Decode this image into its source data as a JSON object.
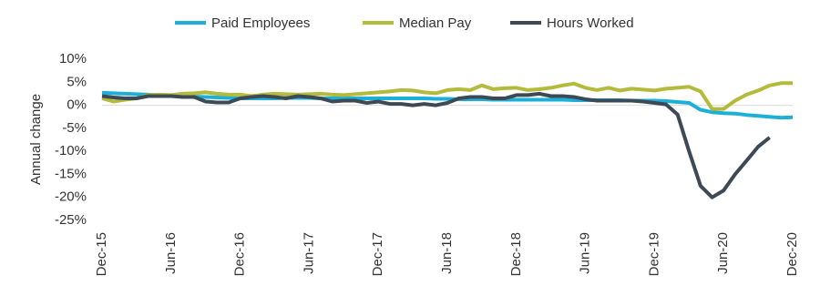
{
  "chart_data": {
    "type": "line",
    "y_label": "Annual change",
    "categories": [
      "Dec-15",
      null,
      null,
      null,
      null,
      null,
      "Jun-16",
      null,
      null,
      null,
      null,
      null,
      "Dec-16",
      null,
      null,
      null,
      null,
      null,
      "Jun-17",
      null,
      null,
      null,
      null,
      null,
      "Dec-17",
      null,
      null,
      null,
      null,
      null,
      "Jun-18",
      null,
      null,
      null,
      null,
      null,
      "Dec-18",
      null,
      null,
      null,
      null,
      null,
      "Jun-19",
      null,
      null,
      null,
      null,
      null,
      "Dec-19",
      null,
      null,
      null,
      null,
      null,
      "Jun-20",
      null,
      null,
      null,
      null,
      null,
      "Dec-20"
    ],
    "series": [
      {
        "name": "Paid Employees",
        "color": "#1cb0d8",
        "values": [
          2.7,
          2.6,
          2.5,
          2.4,
          2.3,
          2.2,
          2.1,
          2.0,
          1.9,
          1.8,
          1.7,
          1.6,
          1.5,
          1.5,
          1.5,
          1.5,
          1.6,
          1.6,
          1.6,
          1.5,
          1.5,
          1.5,
          1.5,
          1.5,
          1.5,
          1.5,
          1.5,
          1.5,
          1.5,
          1.4,
          1.4,
          1.3,
          1.3,
          1.3,
          1.2,
          1.2,
          1.2,
          1.2,
          1.2,
          1.2,
          1.2,
          1.1,
          1.1,
          1.1,
          1.1,
          1.1,
          1.0,
          1.0,
          1.0,
          0.9,
          0.7,
          0.5,
          -1.0,
          -1.5,
          -1.7,
          -1.8,
          -2.1,
          -2.3,
          -2.5,
          -2.7,
          -2.6
        ]
      },
      {
        "name": "Median Pay",
        "color": "#b3ba3c",
        "values": [
          1.5,
          0.8,
          1.2,
          1.5,
          2.2,
          2.3,
          2.2,
          2.5,
          2.6,
          2.8,
          2.5,
          2.3,
          2.3,
          2.0,
          2.3,
          2.5,
          2.4,
          2.3,
          2.4,
          2.5,
          2.3,
          2.2,
          2.4,
          2.6,
          2.8,
          3.0,
          3.3,
          3.2,
          2.8,
          2.6,
          3.3,
          3.5,
          3.3,
          4.3,
          3.5,
          3.7,
          3.8,
          3.3,
          3.5,
          3.8,
          4.3,
          4.7,
          3.8,
          3.3,
          3.8,
          3.2,
          3.6,
          3.4,
          3.2,
          3.6,
          3.8,
          4.0,
          3.0,
          -0.8,
          -0.8,
          1.0,
          2.3,
          3.2,
          4.3,
          4.8,
          4.8
        ]
      },
      {
        "name": "Hours Worked",
        "color": "#3d4a56",
        "values": [
          2.0,
          1.7,
          1.5,
          1.5,
          2.0,
          2.0,
          2.0,
          1.8,
          1.8,
          0.8,
          0.6,
          0.6,
          1.5,
          1.8,
          2.0,
          1.8,
          1.5,
          2.0,
          1.8,
          1.5,
          0.8,
          1.0,
          1.0,
          0.5,
          0.8,
          0.3,
          0.3,
          0.0,
          0.3,
          0.0,
          0.5,
          1.5,
          1.8,
          1.8,
          1.5,
          1.5,
          2.2,
          2.2,
          2.5,
          2.0,
          2.0,
          1.8,
          1.3,
          1.0,
          1.0,
          1.0,
          1.0,
          0.8,
          0.5,
          0.2,
          -2.0,
          -10.0,
          -17.5,
          -20.0,
          -18.5,
          -15.0,
          -12.0,
          -9.0,
          -7.0,
          null,
          null
        ]
      }
    ],
    "ylim": [
      -25,
      10
    ],
    "yticks": [
      {
        "value": 10,
        "label": "10%"
      },
      {
        "value": 5,
        "label": "5%"
      },
      {
        "value": 0,
        "label": "0%"
      },
      {
        "value": -5,
        "label": "-5%"
      },
      {
        "value": -10,
        "label": "-10%"
      },
      {
        "value": -15,
        "label": "-15%"
      },
      {
        "value": -20,
        "label": "-20%"
      },
      {
        "value": -25,
        "label": "-25%"
      }
    ],
    "grid": false,
    "legend": "top"
  }
}
